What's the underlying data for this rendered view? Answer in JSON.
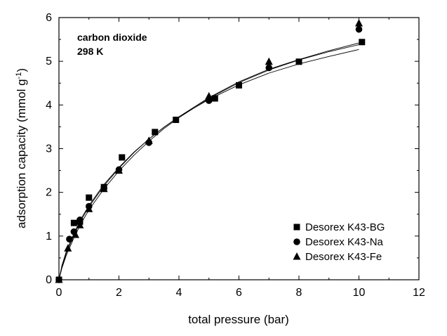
{
  "chart_data": {
    "type": "scatter",
    "xlabel": "total pressure (bar)",
    "ylabel": "adsorption capacity (mmol g",
    "ylabel_sup": "-1",
    "ylabel_end": ")",
    "xlim": [
      0,
      12
    ],
    "ylim": [
      0,
      6
    ],
    "xticks": [
      0,
      2,
      4,
      6,
      8,
      10,
      12
    ],
    "yticks": [
      0,
      1,
      2,
      3,
      4,
      5,
      6
    ],
    "xtick_labels": [
      "0",
      "2",
      "4",
      "6",
      "8",
      "10",
      "12"
    ],
    "ytick_labels": [
      "0",
      "1",
      "2",
      "3",
      "4",
      "5",
      "6"
    ],
    "grid": false,
    "legend_position": "bottom-right",
    "annotations": [
      "carbon dioxide",
      "298 K"
    ],
    "series": [
      {
        "name": "Desorex K43-BG",
        "marker": "square",
        "x": [
          0,
          0.5,
          0.7,
          1.0,
          1.5,
          2.1,
          3.2,
          3.9,
          5.2,
          6.0,
          8.0,
          10.1
        ],
        "y": [
          0,
          1.3,
          1.33,
          1.88,
          2.12,
          2.8,
          3.38,
          3.66,
          4.15,
          4.45,
          4.99,
          5.44
        ]
      },
      {
        "name": "Desorex K43-Na",
        "marker": "circle",
        "x": [
          0,
          0.35,
          0.5,
          0.7,
          1.0,
          1.5,
          2.0,
          3.0,
          5.0,
          7.0,
          10.0
        ],
        "y": [
          0,
          0.93,
          1.1,
          1.37,
          1.68,
          2.1,
          2.52,
          3.14,
          4.1,
          4.85,
          5.73
        ]
      },
      {
        "name": "Desorex K43-Fe",
        "marker": "triangle",
        "x": [
          0,
          0.3,
          0.55,
          0.7,
          1.0,
          1.5,
          2.0,
          3.0,
          5.0,
          7.0,
          10.0
        ],
        "y": [
          0,
          0.72,
          1.03,
          1.25,
          1.62,
          2.08,
          2.5,
          3.18,
          4.2,
          4.99,
          5.87
        ]
      }
    ],
    "fit_curves": [
      {
        "x": [
          0,
          0.1,
          0.25,
          0.5,
          0.75,
          1.0,
          1.5,
          2.0,
          2.5,
          3.0,
          3.5,
          4.0,
          5.0,
          6.0,
          7.0,
          8.0,
          9.0,
          10.0
        ],
        "y": [
          0,
          0.3,
          0.62,
          1.02,
          1.38,
          1.67,
          2.15,
          2.55,
          2.91,
          3.22,
          3.49,
          3.73,
          4.17,
          4.53,
          4.82,
          5.04,
          5.24,
          5.42
        ]
      },
      {
        "x": [
          0,
          0.1,
          0.25,
          0.5,
          0.75,
          1.0,
          1.5,
          2.0,
          2.5,
          3.0,
          3.5,
          4.0,
          5.0,
          6.0,
          7.0,
          8.0,
          9.0,
          10.0
        ],
        "y": [
          0,
          0.27,
          0.57,
          0.96,
          1.31,
          1.6,
          2.08,
          2.49,
          2.85,
          3.17,
          3.46,
          3.71,
          4.15,
          4.51,
          4.8,
          5.03,
          5.22,
          5.38
        ]
      },
      {
        "x": [
          0,
          0.1,
          0.25,
          0.5,
          0.75,
          1.0,
          1.5,
          2.0,
          2.5,
          3.0,
          3.5,
          4.0,
          5.0,
          6.0,
          7.0,
          8.0,
          9.0,
          10.0
        ],
        "y": [
          0,
          0.33,
          0.66,
          1.06,
          1.41,
          1.7,
          2.18,
          2.57,
          2.92,
          3.22,
          3.49,
          3.73,
          4.13,
          4.46,
          4.73,
          4.94,
          5.11,
          5.27
        ]
      }
    ]
  }
}
